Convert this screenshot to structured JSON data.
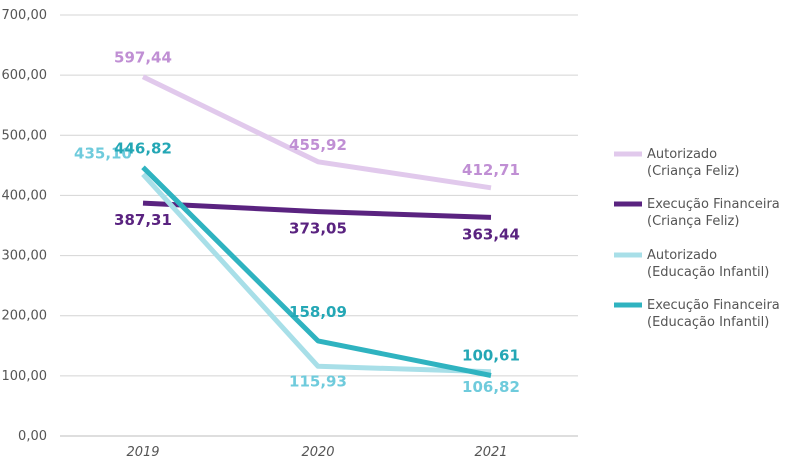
{
  "chart_data": {
    "type": "line",
    "categories": [
      "2019",
      "2020",
      "2021"
    ],
    "ylim": [
      0,
      700
    ],
    "yticks": [
      "0,00",
      "100,00",
      "200,00",
      "300,00",
      "400,00",
      "500,00",
      "600,00",
      "700,00"
    ],
    "grid": true,
    "legend_position": "right",
    "series": [
      {
        "name": "Autorizado\n(Criança Feliz)",
        "color": "#e1c9ec",
        "label_color": "#c08fd4",
        "values": [
          597.44,
          455.92,
          412.71
        ],
        "labels": [
          "597,44",
          "455,92",
          "412,71"
        ]
      },
      {
        "name": "Execução Financeira\n(Criança Feliz)",
        "color": "#5a2380",
        "label_color": "#5a2380",
        "values": [
          387.31,
          373.05,
          363.44
        ],
        "labels": [
          "387,31",
          "373,05",
          "363,44"
        ]
      },
      {
        "name": "Autorizado\n(Educação Infantil)",
        "color": "#a8dfe8",
        "label_color": "#6fcbdc",
        "values": [
          435.1,
          115.93,
          106.82
        ],
        "labels": [
          "435,10",
          "115,93",
          "106,82"
        ]
      },
      {
        "name": "Execução Financeira\n(Educação Infantil)",
        "color": "#2fb3c0",
        "label_color": "#24a7b5",
        "values": [
          446.82,
          158.09,
          100.61
        ],
        "labels": [
          "446,82",
          "158,09",
          "100,61"
        ]
      }
    ]
  }
}
